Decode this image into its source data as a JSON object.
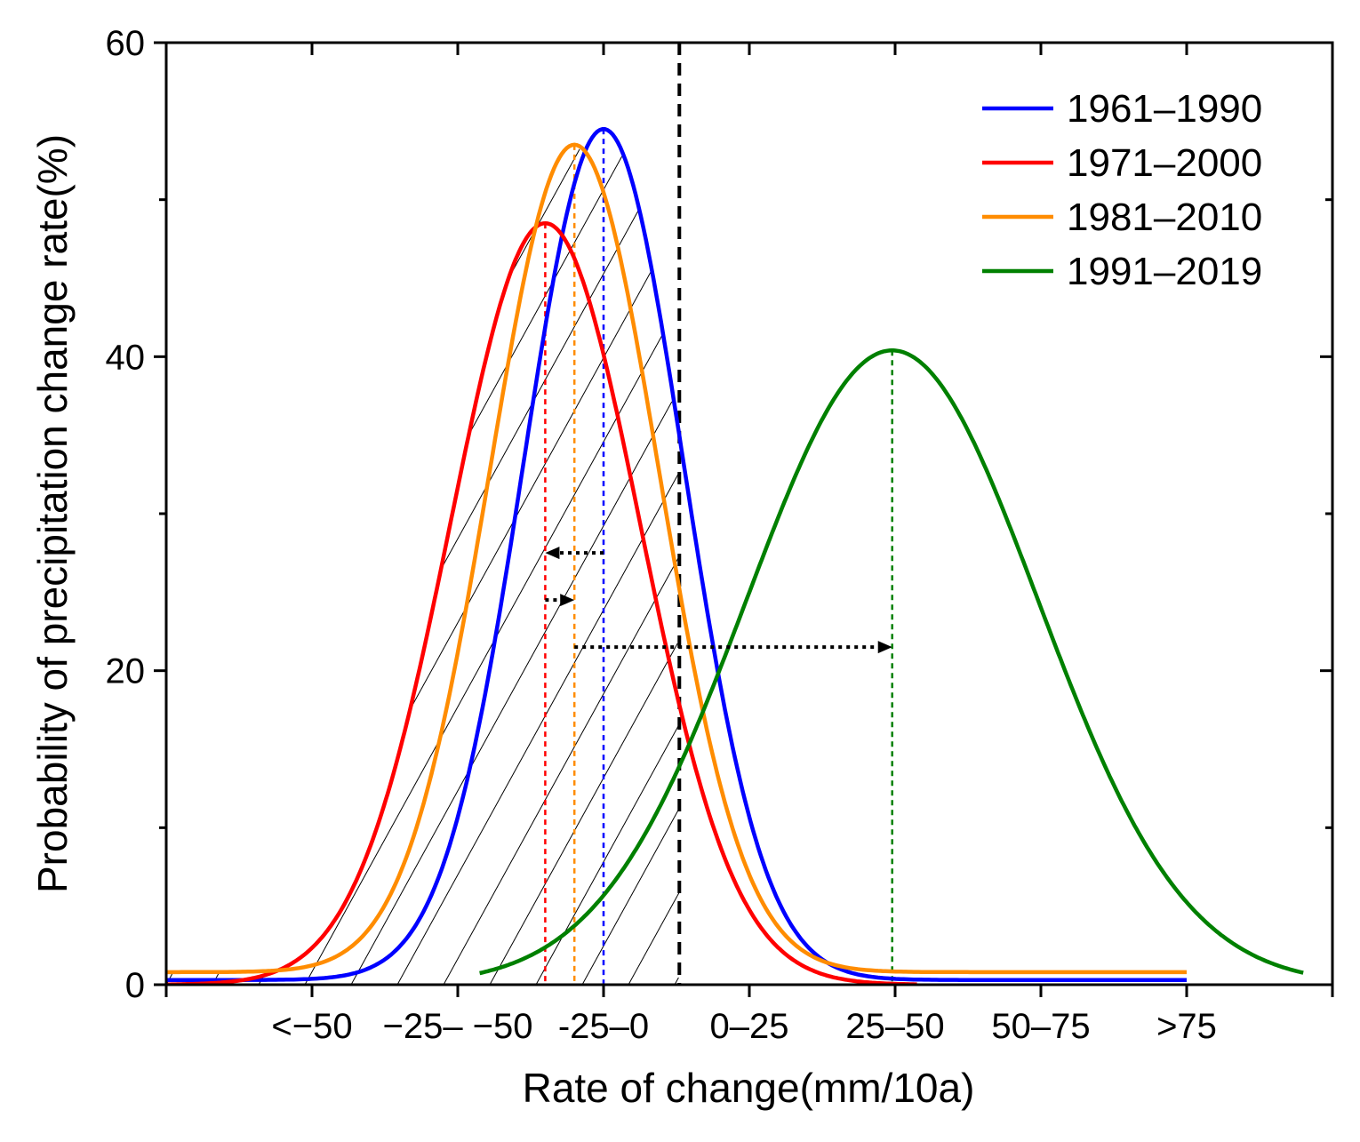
{
  "chart_data": {
    "type": "line",
    "xlabel": "Rate of change(mm/10a)",
    "ylabel": "Probability of precipitation change rate(%)",
    "xlim": [
      0,
      8
    ],
    "ylim": [
      0,
      60
    ],
    "y_ticks": [
      0,
      20,
      40,
      60
    ],
    "y_minor_ticks": [
      10,
      30,
      50
    ],
    "x_ticks": [
      1,
      2,
      3,
      4,
      5,
      6,
      7
    ],
    "x_category_labels": [
      {
        "label": "<−50",
        "x": 1
      },
      {
        "label": "−25– −50",
        "x": 2
      },
      {
        "label": "-25–0",
        "x": 3
      },
      {
        "label": "0–25",
        "x": 4
      },
      {
        "label": "25–50",
        "x": 5
      },
      {
        "label": "50–75",
        "x": 6
      },
      {
        "label": ">75",
        "x": 7
      }
    ],
    "legend_position": "top-right",
    "reference_line_x": 3.52,
    "series": [
      {
        "name": "1961–1990",
        "color": "#0000ff",
        "peak_x": 3.0,
        "peak_y": 54.5,
        "sigma": 0.55,
        "baseline": 0.3,
        "x_range": [
          0,
          7
        ]
      },
      {
        "name": "1971–2000",
        "color": "#ff0000",
        "peak_x": 2.6,
        "peak_y": 48.5,
        "sigma": 0.65,
        "baseline": 0,
        "x_range": [
          0,
          5.15
        ]
      },
      {
        "name": "1981–2010",
        "color": "#ff8c00",
        "peak_x": 2.8,
        "peak_y": 53.5,
        "sigma": 0.58,
        "baseline": 0.8,
        "x_range": [
          0,
          7
        ]
      },
      {
        "name": "1991–2019",
        "color": "#008000",
        "peak_x": 4.98,
        "peak_y": 40.4,
        "sigma": 1.0,
        "baseline": 0,
        "x_range": [
          2.15,
          7.8
        ]
      }
    ],
    "shift_arrows": [
      {
        "from_x": 3.0,
        "to_x": 2.6,
        "y": 27.5
      },
      {
        "from_x": 2.6,
        "to_x": 2.8,
        "y": 24.5
      },
      {
        "from_x": 2.8,
        "to_x": 4.98,
        "y": 21.5
      }
    ]
  }
}
